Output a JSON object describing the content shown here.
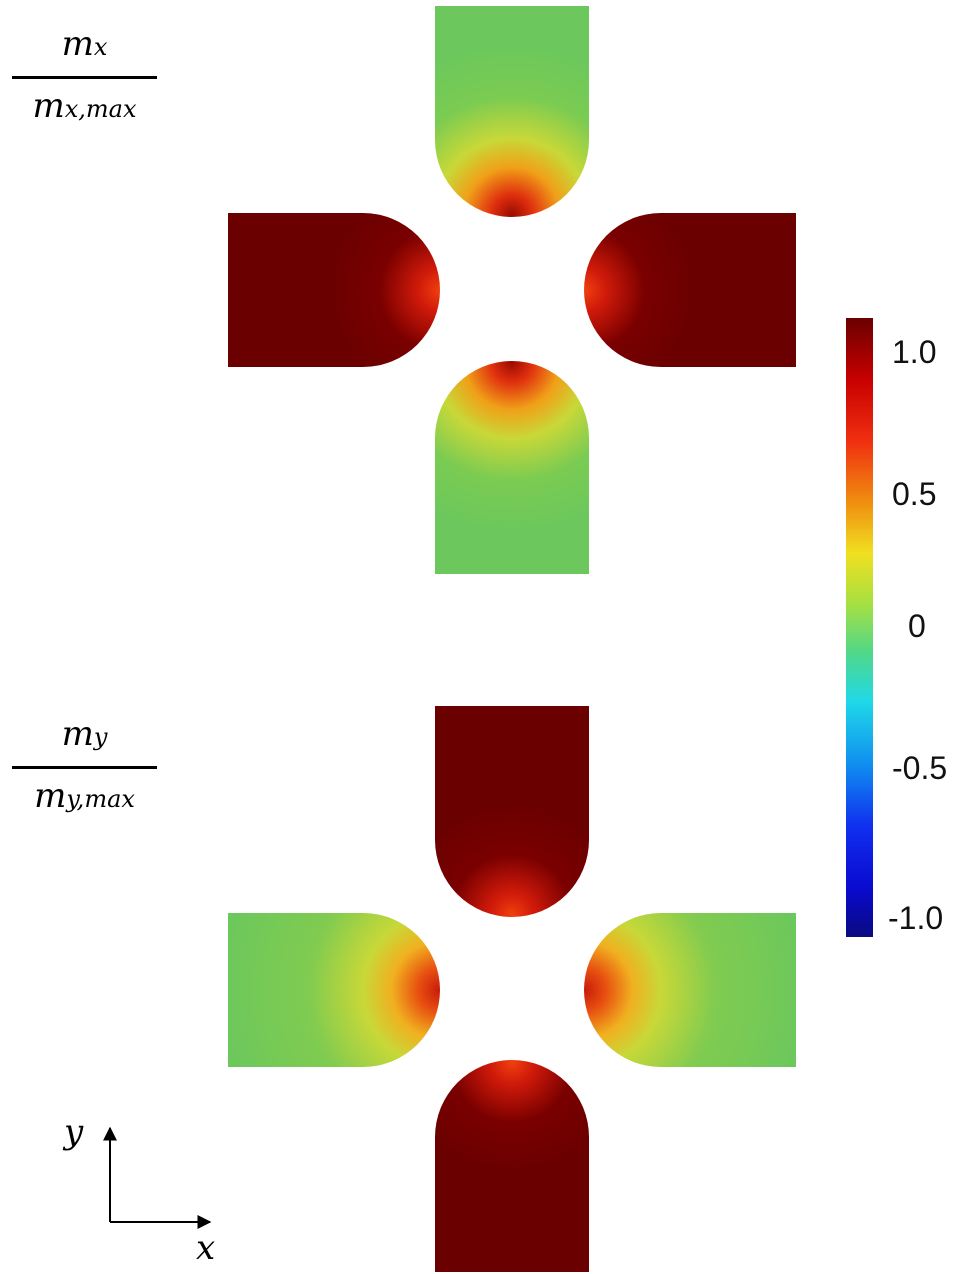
{
  "panels": {
    "top": {
      "label_num_base": "m",
      "label_num_sub": "x",
      "label_den_base": "m",
      "label_den_sub": "x,max"
    },
    "bottom": {
      "label_num_base": "m",
      "label_num_sub": "y",
      "label_den_base": "m",
      "label_den_sub": "y,max"
    }
  },
  "colorbar": {
    "colormap": "jet",
    "range": [
      -1.0,
      1.0
    ],
    "ticks": [
      "1.0",
      "0.5",
      "0",
      "-0.5",
      "-1.0"
    ],
    "colors": {
      "dark_red": "#6b0000",
      "red": "#e01a12",
      "orange": "#f08a10",
      "yellow": "#f0e020",
      "green": "#6cc85c",
      "cyan": "#20d8e8",
      "blue": "#1030f0",
      "navy": "#0a0a80"
    }
  },
  "axes": {
    "y_label": "y",
    "x_label": "x"
  }
}
